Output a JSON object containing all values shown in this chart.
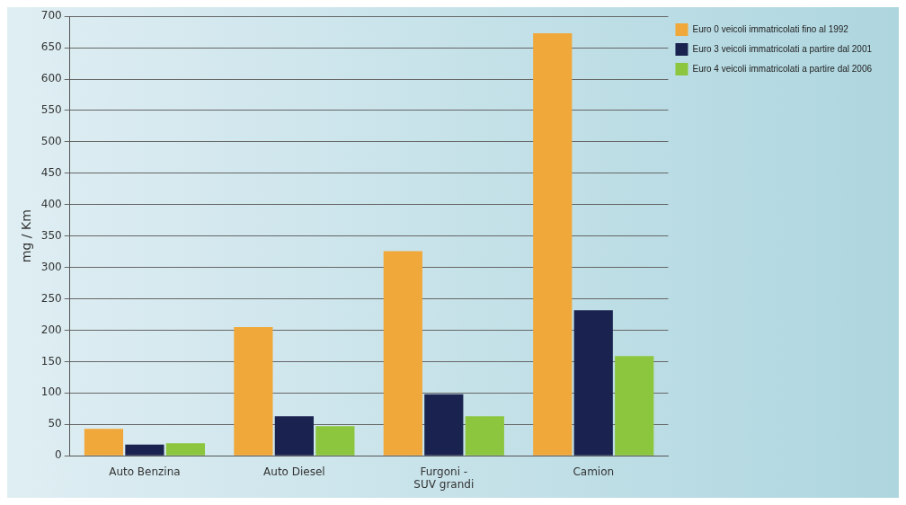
{
  "chart_data": {
    "type": "bar",
    "ylabel": "mg / Km",
    "categories": [
      "Auto Benzina",
      "Auto Diesel",
      "Furgoni - SUV grandi",
      "Camion"
    ],
    "series": [
      {
        "name": "Euro 0 veicoli immatricolati fino al 1992",
        "color": "#f0a83a",
        "values": [
          43,
          205,
          326,
          673
        ]
      },
      {
        "name": "Euro 3 veicoli immatricolati a partire dal 2001",
        "color": "#1a2350",
        "values": [
          18,
          63,
          98,
          232
        ]
      },
      {
        "name": "Euro 4 veicoli immatricolati a partire dal 2006",
        "color": "#8cc63f",
        "values": [
          20,
          47,
          63,
          159
        ]
      }
    ],
    "ylim": [
      0,
      700
    ],
    "yticks": [
      0,
      50,
      100,
      150,
      200,
      250,
      300,
      350,
      400,
      450,
      500,
      550,
      600,
      650,
      700
    ],
    "grid": "y",
    "legend": "top right"
  }
}
